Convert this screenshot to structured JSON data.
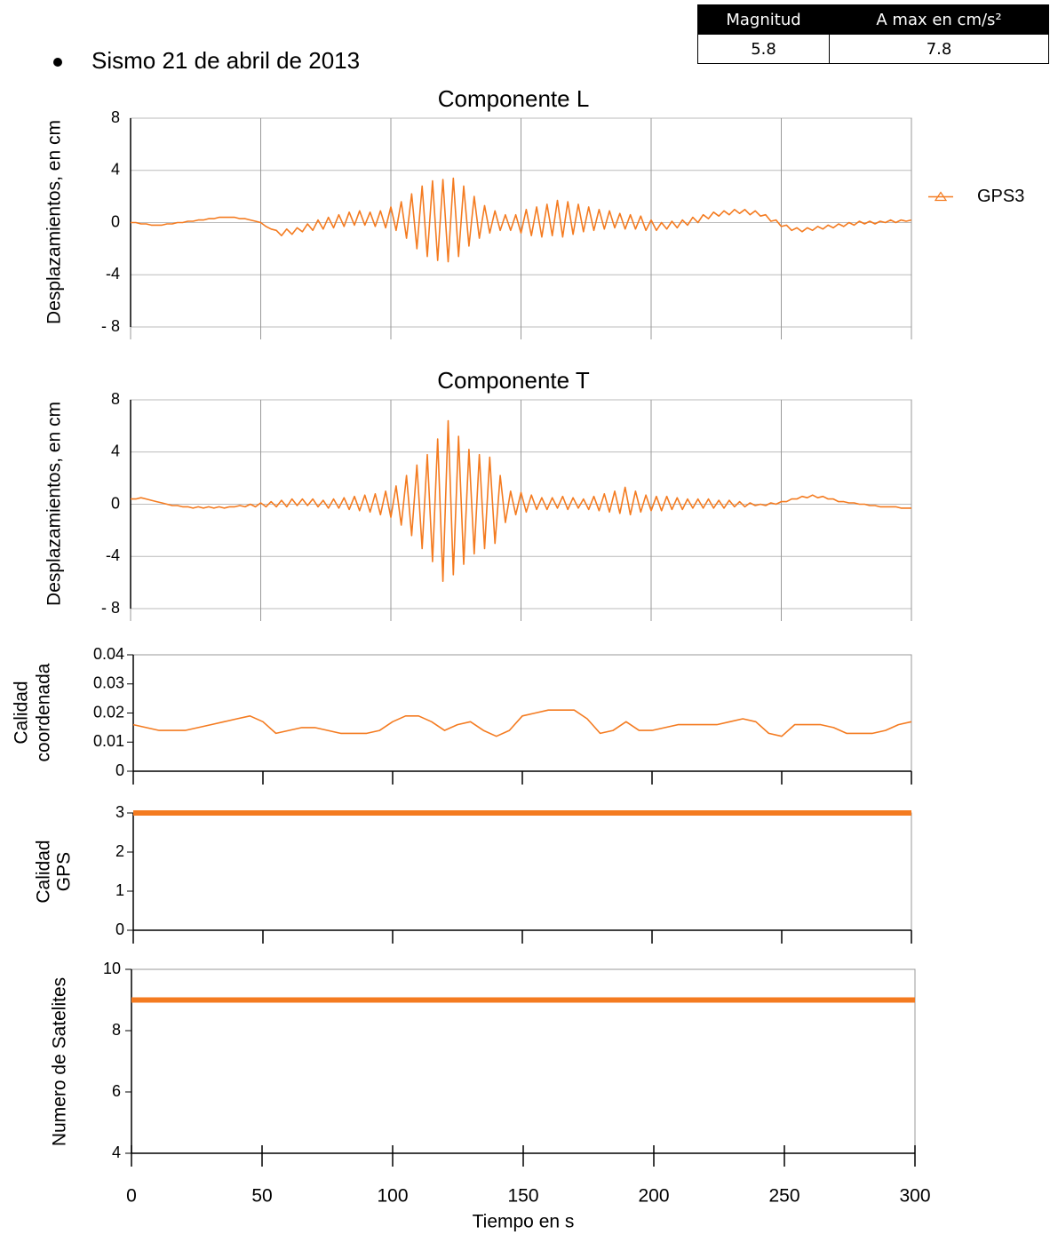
{
  "header": {
    "title": "Sismo 21 de abril de 2013"
  },
  "table": {
    "columns": [
      "Magnitud",
      "A max en cm/s²"
    ],
    "rows": [
      [
        "5.8",
        "7.8"
      ]
    ]
  },
  "chart_data": [
    {
      "type": "line",
      "title": "Componente L",
      "ylabel": [
        "Desplazamientos, en cm"
      ],
      "xlim": [
        0,
        300
      ],
      "ylim": [
        -8,
        8
      ],
      "yticks": [
        8,
        4,
        0,
        -4,
        {
          "value": -8,
          "label": "- 8"
        }
      ],
      "grid": true,
      "legend": "right",
      "x": [
        0,
        2,
        4,
        6,
        8,
        10,
        12,
        14,
        16,
        18,
        20,
        22,
        24,
        26,
        28,
        30,
        32,
        34,
        36,
        38,
        40,
        42,
        44,
        46,
        48,
        50,
        52,
        54,
        56,
        58,
        60,
        62,
        64,
        66,
        68,
        70,
        72,
        74,
        76,
        78,
        80,
        82,
        84,
        86,
        88,
        90,
        92,
        94,
        96,
        98,
        100,
        102,
        104,
        106,
        108,
        110,
        112,
        114,
        116,
        118,
        120,
        122,
        124,
        126,
        128,
        130,
        132,
        134,
        136,
        138,
        140,
        142,
        144,
        146,
        148,
        150,
        152,
        154,
        156,
        158,
        160,
        162,
        164,
        166,
        168,
        170,
        172,
        174,
        176,
        178,
        180,
        182,
        184,
        186,
        188,
        190,
        192,
        194,
        196,
        198,
        200,
        202,
        204,
        206,
        208,
        210,
        212,
        214,
        216,
        218,
        220,
        222,
        224,
        226,
        228,
        230,
        232,
        234,
        236,
        238,
        240,
        242,
        244,
        246,
        248,
        250,
        252,
        254,
        256,
        258,
        260,
        262,
        264,
        266,
        268,
        270,
        272,
        274,
        276,
        278,
        280,
        282,
        284,
        286,
        288,
        290,
        292,
        294,
        296,
        298,
        300
      ],
      "series": [
        {
          "name": "GPS3",
          "color": "#f47b20",
          "values": [
            0.0,
            0.0,
            -0.1,
            -0.1,
            -0.2,
            -0.2,
            -0.2,
            -0.1,
            -0.1,
            0.0,
            0.0,
            0.1,
            0.1,
            0.2,
            0.2,
            0.3,
            0.3,
            0.4,
            0.4,
            0.4,
            0.4,
            0.3,
            0.3,
            0.2,
            0.1,
            0.0,
            -0.3,
            -0.5,
            -0.6,
            -1.0,
            -0.5,
            -0.9,
            -0.4,
            -0.7,
            -0.1,
            -0.6,
            0.2,
            -0.5,
            0.4,
            -0.4,
            0.6,
            -0.3,
            0.8,
            -0.2,
            0.9,
            -0.2,
            0.8,
            -0.3,
            0.9,
            -0.4,
            1.2,
            -0.6,
            1.6,
            -1.2,
            2.2,
            -2.0,
            2.8,
            -2.6,
            3.2,
            -2.9,
            3.3,
            -3.0,
            3.4,
            -2.6,
            2.8,
            -1.8,
            2.0,
            -1.2,
            1.3,
            -0.8,
            0.9,
            -0.6,
            0.6,
            -0.6,
            0.6,
            -0.8,
            1.0,
            -1.0,
            1.2,
            -1.1,
            1.4,
            -1.0,
            1.7,
            -1.1,
            1.6,
            -0.9,
            1.4,
            -0.7,
            1.2,
            -0.6,
            1.0,
            -0.5,
            0.9,
            -0.4,
            0.7,
            -0.5,
            0.6,
            -0.5,
            0.5,
            -0.6,
            0.2,
            -0.6,
            0.0,
            -0.5,
            0.1,
            -0.4,
            0.2,
            -0.2,
            0.4,
            0.0,
            0.6,
            0.3,
            0.8,
            0.5,
            0.9,
            0.6,
            1.0,
            0.7,
            1.0,
            0.6,
            0.9,
            0.5,
            0.6,
            0.1,
            0.2,
            -0.3,
            -0.2,
            -0.6,
            -0.4,
            -0.7,
            -0.4,
            -0.6,
            -0.3,
            -0.5,
            -0.2,
            -0.4,
            -0.1,
            -0.3,
            0.0,
            -0.2,
            0.1,
            -0.1,
            0.1,
            -0.1,
            0.1,
            0.0,
            0.2,
            0.0,
            0.2,
            0.1,
            0.2
          ]
        }
      ]
    },
    {
      "type": "line",
      "title": "Componente T",
      "ylabel": [
        "Desplazamientos, en cm"
      ],
      "xlim": [
        0,
        300
      ],
      "ylim": [
        -8,
        8
      ],
      "yticks": [
        8,
        4,
        0,
        -4,
        {
          "value": -8,
          "label": "- 8"
        }
      ],
      "grid": true,
      "x": [
        0,
        2,
        4,
        6,
        8,
        10,
        12,
        14,
        16,
        18,
        20,
        22,
        24,
        26,
        28,
        30,
        32,
        34,
        36,
        38,
        40,
        42,
        44,
        46,
        48,
        50,
        52,
        54,
        56,
        58,
        60,
        62,
        64,
        66,
        68,
        70,
        72,
        74,
        76,
        78,
        80,
        82,
        84,
        86,
        88,
        90,
        92,
        94,
        96,
        98,
        100,
        102,
        104,
        106,
        108,
        110,
        112,
        114,
        116,
        118,
        120,
        122,
        124,
        126,
        128,
        130,
        132,
        134,
        136,
        138,
        140,
        142,
        144,
        146,
        148,
        150,
        152,
        154,
        156,
        158,
        160,
        162,
        164,
        166,
        168,
        170,
        172,
        174,
        176,
        178,
        180,
        182,
        184,
        186,
        188,
        190,
        192,
        194,
        196,
        198,
        200,
        202,
        204,
        206,
        208,
        210,
        212,
        214,
        216,
        218,
        220,
        222,
        224,
        226,
        228,
        230,
        232,
        234,
        236,
        238,
        240,
        242,
        244,
        246,
        248,
        250,
        252,
        254,
        256,
        258,
        260,
        262,
        264,
        266,
        268,
        270,
        272,
        274,
        276,
        278,
        280,
        282,
        284,
        286,
        288,
        290,
        292,
        294,
        296,
        298,
        300
      ],
      "series": [
        {
          "color": "#f47b20",
          "values": [
            0.4,
            0.4,
            0.5,
            0.4,
            0.3,
            0.2,
            0.1,
            0.0,
            -0.1,
            -0.1,
            -0.2,
            -0.2,
            -0.3,
            -0.2,
            -0.3,
            -0.2,
            -0.3,
            -0.2,
            -0.3,
            -0.2,
            -0.2,
            -0.1,
            -0.2,
            0.0,
            -0.2,
            0.1,
            -0.2,
            0.2,
            -0.2,
            0.3,
            -0.2,
            0.4,
            -0.1,
            0.4,
            -0.1,
            0.4,
            -0.2,
            0.3,
            -0.3,
            0.4,
            -0.3,
            0.5,
            -0.4,
            0.6,
            -0.5,
            0.7,
            -0.6,
            0.8,
            -0.8,
            1.0,
            -1.0,
            1.4,
            -1.6,
            2.2,
            -2.4,
            3.0,
            -3.4,
            3.8,
            -4.4,
            5.0,
            -5.9,
            6.4,
            -5.4,
            5.2,
            -4.6,
            4.2,
            -3.8,
            3.8,
            -3.4,
            3.6,
            -3.0,
            2.2,
            -1.4,
            1.0,
            -0.8,
            0.9,
            -0.6,
            0.7,
            -0.4,
            0.5,
            -0.4,
            0.5,
            -0.3,
            0.6,
            -0.4,
            0.5,
            -0.3,
            0.4,
            -0.4,
            0.6,
            -0.5,
            0.8,
            -0.6,
            1.0,
            -0.7,
            1.3,
            -0.8,
            1.0,
            -0.6,
            0.7,
            -0.5,
            0.6,
            -0.5,
            0.6,
            -0.4,
            0.5,
            -0.4,
            0.4,
            -0.3,
            0.4,
            -0.3,
            0.4,
            -0.3,
            0.3,
            -0.3,
            0.3,
            -0.2,
            0.2,
            -0.2,
            0.1,
            -0.1,
            0.0,
            -0.1,
            0.1,
            0.0,
            0.2,
            0.2,
            0.4,
            0.4,
            0.6,
            0.5,
            0.7,
            0.5,
            0.6,
            0.4,
            0.4,
            0.2,
            0.2,
            0.1,
            0.1,
            0.0,
            0.0,
            -0.1,
            -0.1,
            -0.2,
            -0.2,
            -0.2,
            -0.2,
            -0.3,
            -0.3,
            -0.3
          ]
        }
      ]
    },
    {
      "type": "line",
      "ylabel": [
        "Calidad",
        "coordenada"
      ],
      "xlim": [
        0,
        300
      ],
      "ylim": [
        0,
        0.04
      ],
      "yticks": [
        0.04,
        0.03,
        0.02,
        0.01,
        0
      ],
      "grid": false,
      "x": [
        0,
        5,
        10,
        15,
        20,
        25,
        30,
        35,
        40,
        45,
        50,
        55,
        60,
        65,
        70,
        75,
        80,
        85,
        90,
        95,
        100,
        105,
        110,
        115,
        120,
        125,
        130,
        135,
        140,
        145,
        150,
        155,
        160,
        165,
        170,
        175,
        180,
        185,
        190,
        195,
        200,
        205,
        210,
        215,
        220,
        225,
        230,
        235,
        240,
        245,
        250,
        255,
        260,
        265,
        270,
        275,
        280,
        285,
        290,
        295,
        300
      ],
      "series": [
        {
          "color": "#f47b20",
          "values": [
            0.016,
            0.015,
            0.014,
            0.014,
            0.014,
            0.015,
            0.016,
            0.017,
            0.018,
            0.019,
            0.017,
            0.013,
            0.014,
            0.015,
            0.015,
            0.014,
            0.013,
            0.013,
            0.013,
            0.014,
            0.017,
            0.019,
            0.019,
            0.017,
            0.014,
            0.016,
            0.017,
            0.014,
            0.012,
            0.014,
            0.019,
            0.02,
            0.021,
            0.021,
            0.021,
            0.018,
            0.013,
            0.014,
            0.017,
            0.014,
            0.014,
            0.015,
            0.016,
            0.016,
            0.016,
            0.016,
            0.017,
            0.018,
            0.017,
            0.013,
            0.012,
            0.016,
            0.016,
            0.016,
            0.015,
            0.013,
            0.013,
            0.013,
            0.014,
            0.016,
            0.017
          ]
        }
      ]
    },
    {
      "type": "line",
      "ylabel": [
        "Calidad",
        "GPS"
      ],
      "xlim": [
        0,
        300
      ],
      "ylim": [
        0,
        3
      ],
      "yticks": [
        3,
        2,
        1,
        0
      ],
      "grid": false,
      "x": [
        0,
        300
      ],
      "series": [
        {
          "color": "#f47b20",
          "values": [
            3,
            3
          ]
        }
      ]
    },
    {
      "type": "line",
      "ylabel": [
        "Numero de Satelites"
      ],
      "xlabel": "Tiempo en s",
      "xlim": [
        0,
        300
      ],
      "ylim": [
        4,
        10
      ],
      "yticks": [
        10,
        8,
        6,
        4
      ],
      "xticks": [
        0,
        50,
        100,
        150,
        200,
        250,
        300
      ],
      "grid": false,
      "x": [
        0,
        300
      ],
      "series": [
        {
          "color": "#f47b20",
          "values": [
            9,
            9
          ]
        }
      ]
    }
  ]
}
